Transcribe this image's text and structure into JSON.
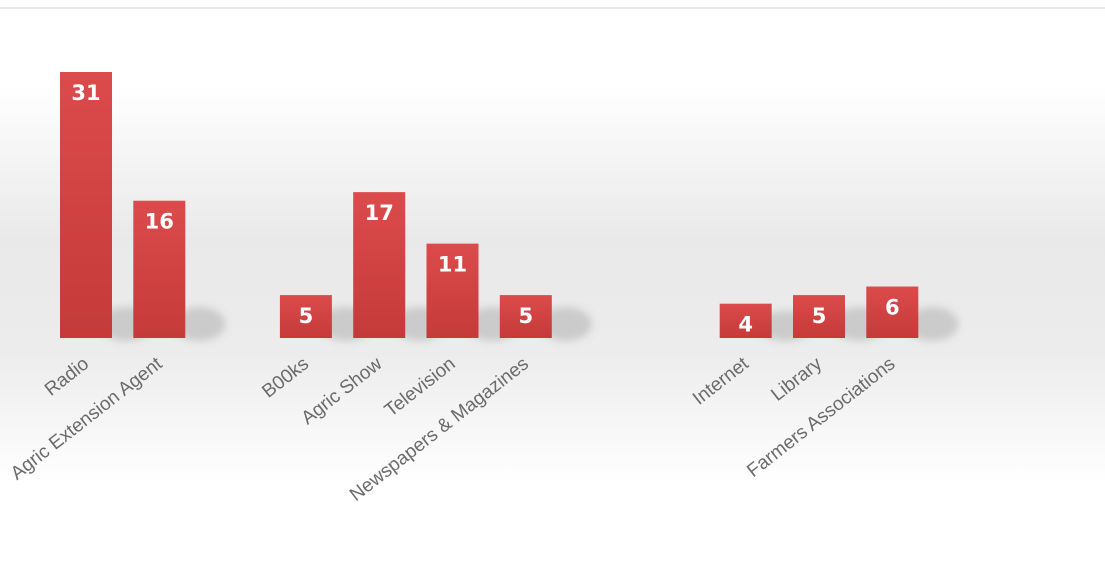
{
  "chart_data": {
    "type": "bar",
    "categories": [
      "Radio",
      "Agric Extension Agent",
      "",
      "B00ks",
      "Agric Show",
      "Television",
      "Newspapers & Magazines",
      "",
      "",
      "Internet",
      "Library",
      "Farmers Associations"
    ],
    "values": [
      31,
      16,
      null,
      5,
      17,
      11,
      5,
      null,
      null,
      4,
      5,
      6
    ],
    "title": "",
    "xlabel": "",
    "ylabel": "",
    "ylim": [
      0,
      31
    ],
    "grid": false,
    "legend": "none",
    "data_labels": true,
    "colors": {
      "bar": "#d64545",
      "bar_dark": "#c53a3a",
      "label": "#ffffff",
      "category_text": "#6b6b6b",
      "background_band": "#e9e9e9",
      "frame_line": "#e4e4e4"
    }
  }
}
